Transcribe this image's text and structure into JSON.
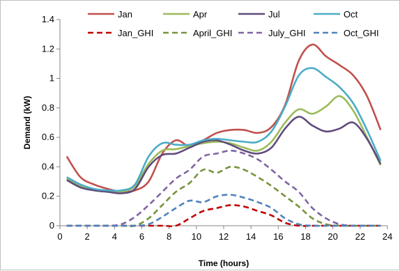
{
  "chart_data": {
    "type": "line",
    "title": "",
    "xlabel": "Time (hours)",
    "ylabel": "Demand (kW)",
    "xlim": [
      0,
      24
    ],
    "ylim": [
      0,
      1.4
    ],
    "xticks": [
      0,
      2,
      4,
      6,
      8,
      10,
      12,
      14,
      16,
      18,
      20,
      22,
      24
    ],
    "yticks": [
      0,
      0.2,
      0.4,
      0.6,
      0.8,
      1,
      1.2,
      1.4
    ],
    "grid": false,
    "legend_position": "top",
    "series": [
      {
        "name": "Jan",
        "color": "#c0504d",
        "dash": "solid",
        "x": [
          0.5,
          1.5,
          2.5,
          3.5,
          4.5,
          5.5,
          6.5,
          7.5,
          8.5,
          9.5,
          10.5,
          11.5,
          12.5,
          13.5,
          14.5,
          15.5,
          16.5,
          17.5,
          18.5,
          19.5,
          20.5,
          21.5,
          22.5,
          23.5
        ],
        "y": [
          0.47,
          0.33,
          0.28,
          0.25,
          0.23,
          0.24,
          0.3,
          0.49,
          0.58,
          0.54,
          0.58,
          0.63,
          0.65,
          0.65,
          0.63,
          0.67,
          0.82,
          1.12,
          1.23,
          1.15,
          1.09,
          1.02,
          0.88,
          0.65
        ]
      },
      {
        "name": "Apr",
        "color": "#9bbb59",
        "dash": "solid",
        "x": [
          0.5,
          1.5,
          2.5,
          3.5,
          4.5,
          5.5,
          6.5,
          7.5,
          8.5,
          9.5,
          10.5,
          11.5,
          12.5,
          13.5,
          14.5,
          15.5,
          16.5,
          17.5,
          18.5,
          19.5,
          20.5,
          21.5,
          22.5,
          23.5
        ],
        "y": [
          0.32,
          0.27,
          0.24,
          0.23,
          0.23,
          0.27,
          0.42,
          0.51,
          0.52,
          0.54,
          0.56,
          0.57,
          0.56,
          0.53,
          0.51,
          0.57,
          0.7,
          0.79,
          0.76,
          0.81,
          0.88,
          0.78,
          0.6,
          0.41
        ]
      },
      {
        "name": "Jul",
        "color": "#604a7b",
        "dash": "solid",
        "x": [
          0.5,
          1.5,
          2.5,
          3.5,
          4.5,
          5.5,
          6.5,
          7.5,
          8.5,
          9.5,
          10.5,
          11.5,
          12.5,
          13.5,
          14.5,
          15.5,
          16.5,
          17.5,
          18.5,
          19.5,
          20.5,
          21.5,
          22.5,
          23.5
        ],
        "y": [
          0.31,
          0.26,
          0.24,
          0.23,
          0.22,
          0.25,
          0.4,
          0.48,
          0.49,
          0.53,
          0.57,
          0.58,
          0.55,
          0.51,
          0.49,
          0.53,
          0.66,
          0.74,
          0.68,
          0.64,
          0.66,
          0.7,
          0.59,
          0.42
        ]
      },
      {
        "name": "Oct",
        "color": "#4bacc6",
        "dash": "solid",
        "x": [
          0.5,
          1.5,
          2.5,
          3.5,
          4.5,
          5.5,
          6.5,
          7.5,
          8.5,
          9.5,
          10.5,
          11.5,
          12.5,
          13.5,
          14.5,
          15.5,
          16.5,
          17.5,
          18.5,
          19.5,
          20.5,
          21.5,
          22.5,
          23.5
        ],
        "y": [
          0.33,
          0.28,
          0.25,
          0.24,
          0.24,
          0.28,
          0.47,
          0.56,
          0.55,
          0.55,
          0.58,
          0.59,
          0.58,
          0.57,
          0.57,
          0.64,
          0.81,
          1.02,
          1.07,
          1.01,
          0.94,
          0.83,
          0.65,
          0.44
        ]
      },
      {
        "name": "Jan_GHI",
        "color": "#c00000",
        "dash": "dashed",
        "x": [
          0.5,
          1.5,
          2.5,
          3.5,
          4.5,
          5.5,
          6.5,
          7.5,
          8.5,
          9.5,
          10.5,
          11.5,
          12.5,
          13.5,
          14.5,
          15.5,
          16.5,
          17.5,
          18.5,
          19.5,
          20.5,
          21.5,
          22.5,
          23.5
        ],
        "y": [
          0,
          0,
          0,
          0,
          0,
          0,
          0,
          0,
          0,
          0.05,
          0.1,
          0.12,
          0.14,
          0.13,
          0.1,
          0.07,
          0.02,
          0,
          0,
          0,
          0,
          0,
          0,
          0
        ]
      },
      {
        "name": "April_GHI",
        "color": "#77933c",
        "dash": "dashed",
        "x": [
          0.5,
          1.5,
          2.5,
          3.5,
          4.5,
          5.5,
          6.5,
          7.5,
          8.5,
          9.5,
          10.5,
          11.5,
          12.5,
          13.5,
          14.5,
          15.5,
          16.5,
          17.5,
          18.5,
          19.5,
          20.5,
          21.5,
          22.5,
          23.5
        ],
        "y": [
          0,
          0,
          0,
          0,
          0,
          0,
          0.05,
          0.14,
          0.23,
          0.29,
          0.38,
          0.36,
          0.4,
          0.38,
          0.33,
          0.27,
          0.2,
          0.13,
          0.05,
          0.01,
          0,
          0,
          0,
          0
        ]
      },
      {
        "name": "July_GHI",
        "color": "#8064a2",
        "dash": "dashed",
        "x": [
          0.5,
          1.5,
          2.5,
          3.5,
          4.5,
          5.5,
          6.5,
          7.5,
          8.5,
          9.5,
          10.5,
          11.5,
          12.5,
          13.5,
          14.5,
          15.5,
          16.5,
          17.5,
          18.5,
          19.5,
          20.5,
          21.5,
          22.5,
          23.5
        ],
        "y": [
          0,
          0,
          0,
          0,
          0.01,
          0.06,
          0.14,
          0.23,
          0.32,
          0.38,
          0.47,
          0.49,
          0.51,
          0.49,
          0.45,
          0.38,
          0.3,
          0.23,
          0.12,
          0.05,
          0.01,
          0,
          0,
          0
        ]
      },
      {
        "name": "Oct_GHI",
        "color": "#4f81bd",
        "dash": "dashed",
        "x": [
          0.5,
          1.5,
          2.5,
          3.5,
          4.5,
          5.5,
          6.5,
          7.5,
          8.5,
          9.5,
          10.5,
          11.5,
          12.5,
          13.5,
          14.5,
          15.5,
          16.5,
          17.5,
          18.5,
          19.5,
          20.5,
          21.5,
          22.5,
          23.5
        ],
        "y": [
          0,
          0,
          0,
          0,
          0,
          0,
          0.01,
          0.06,
          0.12,
          0.17,
          0.16,
          0.2,
          0.21,
          0.19,
          0.16,
          0.12,
          0.05,
          0.01,
          0,
          0,
          0,
          0,
          0,
          0
        ]
      }
    ]
  }
}
